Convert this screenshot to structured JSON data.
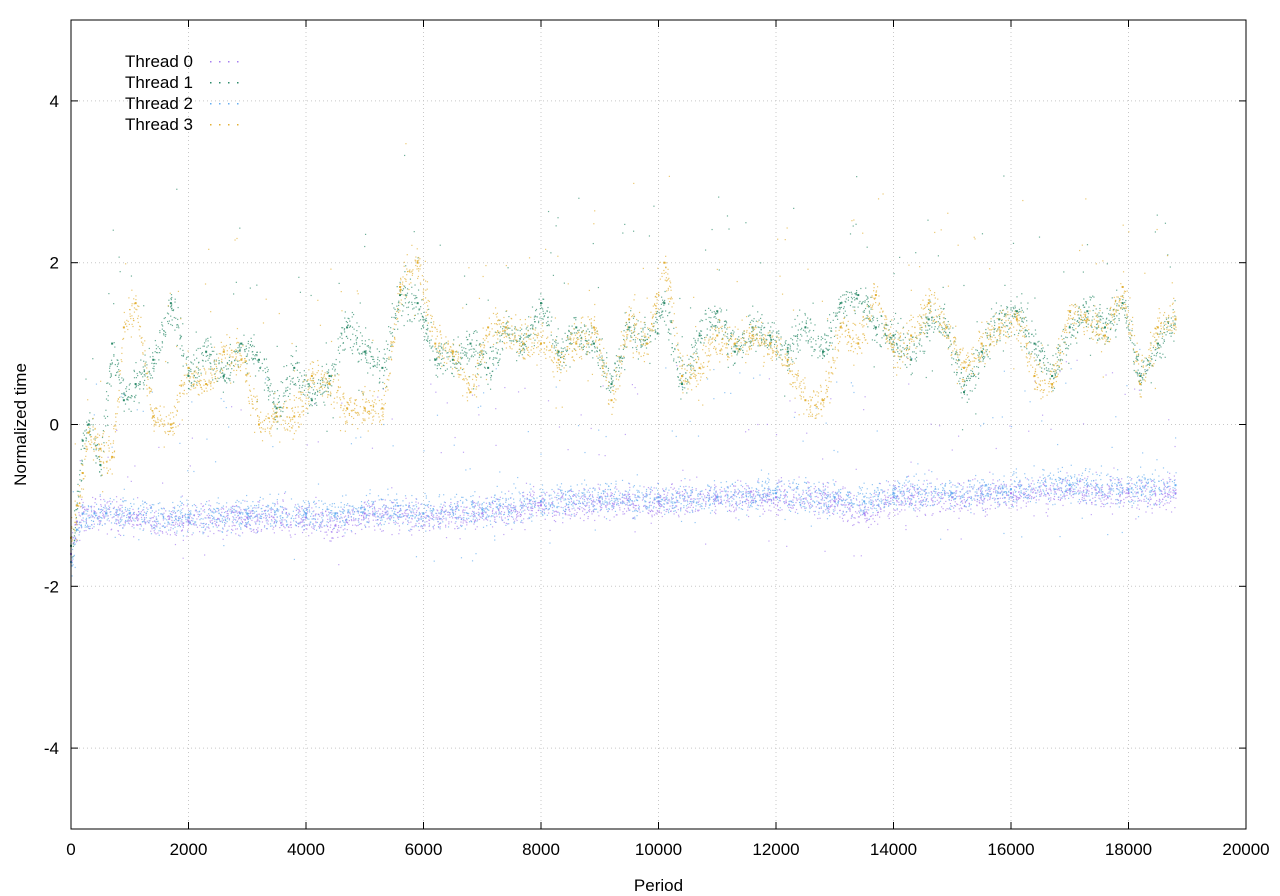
{
  "chart_data": {
    "type": "scatter",
    "title": "",
    "xlabel": "Period",
    "ylabel": "Normalized time",
    "xlim": [
      0,
      20000
    ],
    "ylim": [
      -5,
      5
    ],
    "x_ticks": [
      0,
      2000,
      4000,
      6000,
      8000,
      10000,
      12000,
      14000,
      16000,
      18000,
      20000
    ],
    "y_ticks": [
      -4,
      -2,
      0,
      2,
      4
    ],
    "grid": true,
    "legend_position": "top-left",
    "series": [
      {
        "name": "Thread 0",
        "color": "#a77ff0",
        "x": [
          0,
          100,
          200,
          400,
          600,
          1000,
          2000,
          3000,
          4000,
          4500,
          5000,
          6000,
          7000,
          8000,
          9000,
          10000,
          11000,
          12000,
          13000,
          13500,
          14000,
          15000,
          16000,
          17000,
          18000,
          18800
        ],
        "y": [
          -1.6,
          -1.2,
          -1.1,
          -1.1,
          -1.1,
          -1.15,
          -1.2,
          -1.15,
          -1.15,
          -1.25,
          -1.1,
          -1.1,
          -1.1,
          -1.0,
          -0.95,
          -0.95,
          -0.9,
          -0.9,
          -0.95,
          -1.1,
          -0.9,
          -0.9,
          -0.85,
          -0.8,
          -0.85,
          -0.85
        ],
        "spread": 0.1
      },
      {
        "name": "Thread 1",
        "color": "#2e8b6b",
        "x": [
          0,
          100,
          200,
          300,
          500,
          700,
          900,
          1100,
          1400,
          1700,
          2000,
          2300,
          2600,
          2900,
          3200,
          3500,
          3800,
          4100,
          4400,
          4700,
          5000,
          5300,
          5600,
          5900,
          6200,
          6500,
          6800,
          7100,
          7400,
          7700,
          8000,
          8300,
          8600,
          8900,
          9200,
          9500,
          9800,
          10100,
          10400,
          10700,
          11000,
          11300,
          11600,
          11900,
          12200,
          12500,
          12800,
          13100,
          13400,
          13700,
          14000,
          14300,
          14600,
          14900,
          15200,
          15500,
          15800,
          16100,
          16400,
          16700,
          17000,
          17300,
          17600,
          17900,
          18200,
          18500,
          18800
        ],
        "y": [
          -1.5,
          -1.0,
          -0.2,
          0.0,
          -0.5,
          1.0,
          0.3,
          0.5,
          0.8,
          1.5,
          0.6,
          0.9,
          0.6,
          1.0,
          0.8,
          0.2,
          0.7,
          0.3,
          0.6,
          1.2,
          0.9,
          0.7,
          1.6,
          1.5,
          0.8,
          0.8,
          1.0,
          0.7,
          1.2,
          1.0,
          1.5,
          0.9,
          1.2,
          1.0,
          0.5,
          1.2,
          1.0,
          1.5,
          0.5,
          1.1,
          1.4,
          0.9,
          1.2,
          1.1,
          0.9,
          1.2,
          0.9,
          1.5,
          1.6,
          1.2,
          1.1,
          0.8,
          1.3,
          1.2,
          0.4,
          0.9,
          1.3,
          1.4,
          1.0,
          0.6,
          1.2,
          1.4,
          1.2,
          1.5,
          0.6,
          1.0,
          1.3
        ],
        "spread": 0.12
      },
      {
        "name": "Thread 2",
        "color": "#66aef0",
        "x": [
          0,
          100,
          200,
          400,
          600,
          1000,
          2000,
          3000,
          4000,
          4500,
          5000,
          6000,
          7000,
          8000,
          9000,
          10000,
          11000,
          12000,
          13000,
          13500,
          14000,
          15000,
          16000,
          17000,
          18000,
          18800
        ],
        "y": [
          -1.7,
          -1.3,
          -1.1,
          -1.1,
          -1.1,
          -1.1,
          -1.15,
          -1.1,
          -1.1,
          -1.1,
          -1.05,
          -1.1,
          -1.05,
          -0.95,
          -0.9,
          -0.9,
          -0.9,
          -0.85,
          -0.9,
          -0.95,
          -0.85,
          -0.85,
          -0.8,
          -0.75,
          -0.8,
          -0.75
        ],
        "spread": 0.1
      },
      {
        "name": "Thread 3",
        "color": "#e3b036",
        "x": [
          0,
          100,
          200,
          300,
          500,
          700,
          900,
          1100,
          1400,
          1700,
          2000,
          2300,
          2600,
          2900,
          3200,
          3500,
          3800,
          4100,
          4400,
          4700,
          5000,
          5300,
          5600,
          5900,
          6200,
          6500,
          6800,
          7100,
          7400,
          7700,
          8000,
          8300,
          8600,
          8900,
          9200,
          9500,
          9800,
          10100,
          10400,
          10700,
          11000,
          11300,
          11600,
          11900,
          12200,
          12500,
          12800,
          13100,
          13400,
          13700,
          14000,
          14300,
          14600,
          14900,
          15200,
          15500,
          15800,
          16100,
          16400,
          16700,
          17000,
          17300,
          17600,
          17900,
          18200,
          18500,
          18800
        ],
        "y": [
          -1.4,
          -1.0,
          -0.6,
          -0.1,
          -0.3,
          -0.4,
          1.2,
          1.5,
          0.1,
          0.0,
          0.7,
          0.5,
          0.9,
          0.8,
          0.0,
          0.1,
          0.1,
          0.6,
          0.5,
          0.2,
          0.2,
          0.2,
          1.7,
          2.0,
          1.0,
          0.9,
          0.4,
          1.2,
          1.2,
          1.0,
          1.0,
          0.8,
          1.0,
          1.2,
          0.3,
          1.3,
          1.0,
          2.0,
          0.6,
          0.7,
          1.1,
          1.0,
          1.1,
          1.0,
          0.8,
          0.3,
          0.3,
          1.2,
          1.0,
          1.6,
          0.9,
          1.1,
          1.5,
          1.2,
          0.7,
          1.0,
          1.2,
          1.3,
          0.6,
          0.5,
          1.4,
          1.3,
          1.1,
          1.7,
          0.5,
          1.2,
          1.3
        ],
        "spread": 0.12
      }
    ]
  }
}
